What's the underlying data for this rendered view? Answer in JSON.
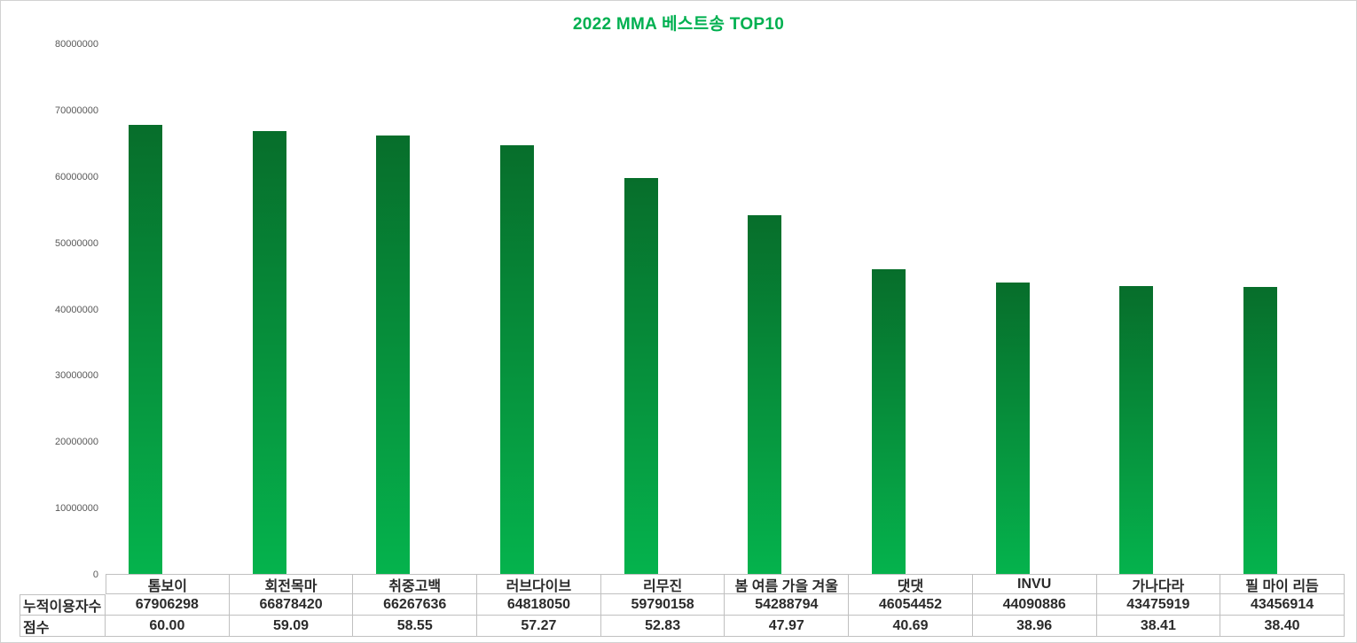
{
  "title": "2022 MMA 베스트송 TOP10",
  "colors": {
    "title_green": "#00b050",
    "bar_gradient_top": "#076e2b",
    "bar_gradient_bottom": "#05b34d",
    "axis_label_gray": "#595959",
    "table_border": "#c0c0c0",
    "table_text": "#2b2b2b"
  },
  "chart_data": {
    "type": "bar",
    "title": "2022 MMA 베스트송 TOP10",
    "categories": [
      "톰보이",
      "회전목마",
      "취중고백",
      "러브다이브",
      "리무진",
      "봄 여름 가을 겨울",
      "댓댓",
      "INVU",
      "가나다라",
      "필 마이 리듬"
    ],
    "series": [
      {
        "name": "누적이용자수",
        "plotted_as": "bars",
        "values": [
          67906298,
          66878420,
          66267636,
          64818050,
          59790158,
          54288794,
          46054452,
          44090886,
          43475919,
          43456914
        ]
      },
      {
        "name": "점수",
        "plotted_as": "data-table-only",
        "values": [
          60.0,
          59.09,
          58.55,
          57.27,
          52.83,
          47.97,
          40.69,
          38.96,
          38.41,
          38.4
        ]
      }
    ],
    "xlabel": "",
    "ylabel": "",
    "ylim": [
      0,
      80000000
    ],
    "ytick_step": 10000000,
    "ytick_labels": [
      "0",
      "10000000",
      "20000000",
      "30000000",
      "40000000",
      "50000000",
      "60000000",
      "70000000",
      "80000000"
    ],
    "grid": false,
    "legend": "none",
    "data_table_below_axis": true
  }
}
